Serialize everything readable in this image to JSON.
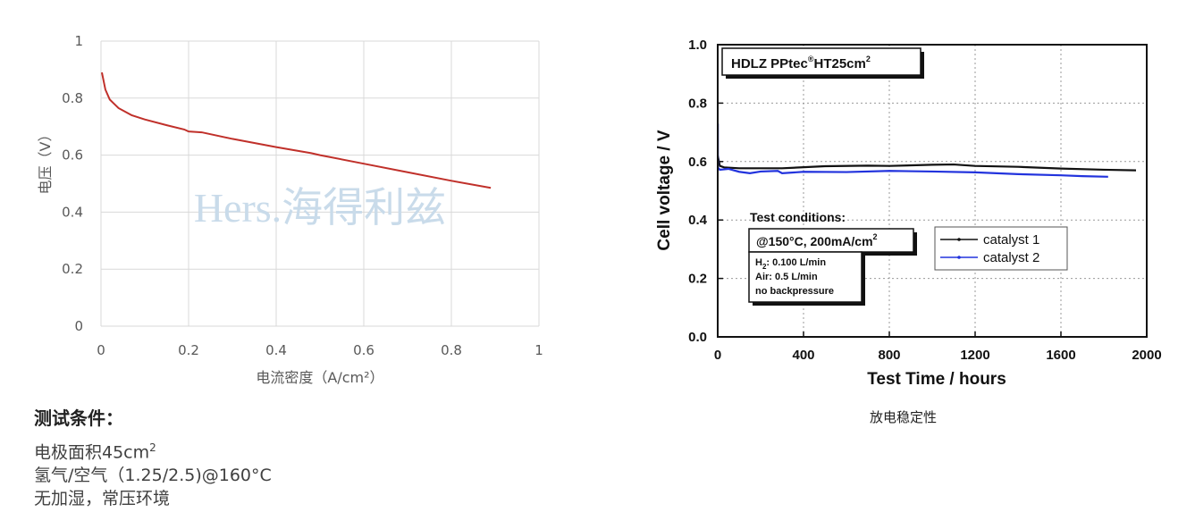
{
  "chart_data": [
    {
      "type": "line",
      "xlabel": "电流密度（A/cm²）",
      "ylabel": "电压（V）",
      "xlim": [
        0,
        1
      ],
      "ylim": [
        0,
        1
      ],
      "xticks": [
        "0",
        "0.2",
        "0.4",
        "0.6",
        "0.8",
        "1"
      ],
      "yticks": [
        "0",
        "0.2",
        "0.4",
        "0.6",
        "0.8",
        "1"
      ],
      "grid": true,
      "watermark": "Hers.海得利兹",
      "series": [
        {
          "color": "#c0302a",
          "x": [
            0.002,
            0.01,
            0.02,
            0.04,
            0.07,
            0.1,
            0.15,
            0.19,
            0.2,
            0.23,
            0.3,
            0.4,
            0.48,
            0.5,
            0.6,
            0.7,
            0.8,
            0.89
          ],
          "y": [
            0.89,
            0.83,
            0.795,
            0.765,
            0.74,
            0.725,
            0.705,
            0.69,
            0.683,
            0.68,
            0.657,
            0.628,
            0.607,
            0.6,
            0.57,
            0.54,
            0.51,
            0.485
          ]
        }
      ]
    },
    {
      "type": "line",
      "xlabel": "Test Time / hours",
      "ylabel": "Cell voltage / V",
      "xlim": [
        0,
        2000
      ],
      "ylim": [
        0,
        1.0
      ],
      "xticks": [
        "0",
        "400",
        "800",
        "1200",
        "1600",
        "2000"
      ],
      "yticks": [
        "0.0",
        "0.2",
        "0.4",
        "0.6",
        "0.8",
        "1.0"
      ],
      "grid": true,
      "legend_position": "right",
      "series": [
        {
          "name": "catalyst 1",
          "color": "#111111",
          "x": [
            0,
            10,
            30,
            100,
            300,
            500,
            700,
            800,
            1000,
            1100,
            1200,
            1400,
            1600,
            1800,
            1950
          ],
          "y": [
            0.62,
            0.585,
            0.58,
            0.577,
            0.577,
            0.584,
            0.586,
            0.585,
            0.589,
            0.59,
            0.585,
            0.582,
            0.576,
            0.572,
            0.57
          ]
        },
        {
          "name": "catalyst 2",
          "color": "#2233dd",
          "x": [
            0,
            10,
            50,
            100,
            150,
            200,
            280,
            300,
            400,
            600,
            800,
            1000,
            1200,
            1400,
            1600,
            1700,
            1820
          ],
          "y": [
            0.58,
            0.572,
            0.575,
            0.565,
            0.56,
            0.566,
            0.568,
            0.56,
            0.565,
            0.564,
            0.568,
            0.566,
            0.563,
            0.557,
            0.553,
            0.55,
            0.548
          ]
        }
      ],
      "spike": {
        "x": 2,
        "y": 0.73
      },
      "title_box": {
        "text": "HDLZ PPtec",
        "sup": "®",
        "text2": "HT25cm",
        "sup2": "2"
      },
      "conditions": {
        "heading": "Test conditions:",
        "main": "@150°C, 200mA/cm",
        "main_sup": "2",
        "h2": "H",
        "h2_sub": "2",
        "h2_rest": ": 0.100 L/min",
        "air": "Air: 0.5 L/min",
        "bp": "no backpressure"
      }
    }
  ],
  "test_conditions": {
    "title": "测试条件：",
    "line1_pre": "电极面积45cm",
    "line1_sup": "2",
    "line2": "氢气/空气（1.25/2.5)@160°C",
    "line3": "无加湿，常压环境"
  },
  "caption": "放电稳定性"
}
